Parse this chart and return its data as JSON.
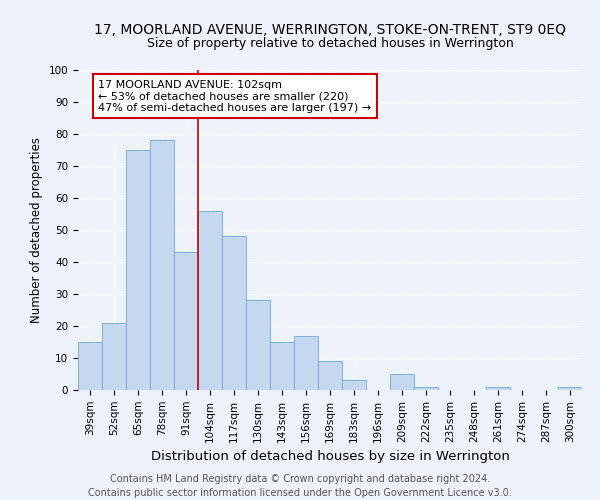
{
  "title": "17, MOORLAND AVENUE, WERRINGTON, STOKE-ON-TRENT, ST9 0EQ",
  "subtitle": "Size of property relative to detached houses in Werrington",
  "xlabel": "Distribution of detached houses by size in Werrington",
  "ylabel": "Number of detached properties",
  "categories": [
    "39sqm",
    "52sqm",
    "65sqm",
    "78sqm",
    "91sqm",
    "104sqm",
    "117sqm",
    "130sqm",
    "143sqm",
    "156sqm",
    "169sqm",
    "183sqm",
    "196sqm",
    "209sqm",
    "222sqm",
    "235sqm",
    "248sqm",
    "261sqm",
    "274sqm",
    "287sqm",
    "300sqm"
  ],
  "values": [
    15,
    21,
    75,
    78,
    43,
    56,
    48,
    28,
    15,
    17,
    9,
    3,
    0,
    5,
    1,
    0,
    0,
    1,
    0,
    0,
    1
  ],
  "bar_color": "#c5d8f0",
  "bar_edge_color": "#6aaad4",
  "red_line_index": 5,
  "annotation_line1": "17 MOORLAND AVENUE: 102sqm",
  "annotation_line2": "← 53% of detached houses are smaller (220)",
  "annotation_line3": "47% of semi-detached houses are larger (197) →",
  "annotation_box_color": "#ffffff",
  "annotation_box_edge": "#cc0000",
  "vline_color": "#cc0000",
  "ylim": [
    0,
    100
  ],
  "footer1": "Contains HM Land Registry data © Crown copyright and database right 2024.",
  "footer2": "Contains public sector information licensed under the Open Government Licence v3.0.",
  "background_color": "#eef2fa",
  "title_fontsize": 10,
  "subtitle_fontsize": 9,
  "xlabel_fontsize": 9.5,
  "ylabel_fontsize": 8.5,
  "tick_fontsize": 7.5,
  "footer_fontsize": 7,
  "annotation_fontsize": 8
}
